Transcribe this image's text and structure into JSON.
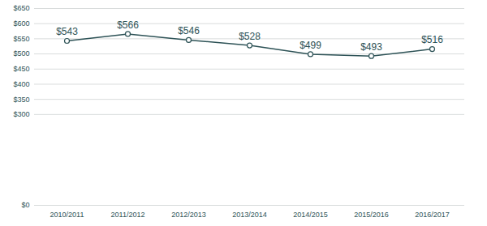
{
  "chart_data": {
    "type": "line",
    "categories": [
      "2010/2011",
      "2011/2012",
      "2012/2013",
      "2013/2014",
      "2014/2015",
      "2015/2016",
      "2016/2017"
    ],
    "values": [
      543,
      566,
      546,
      528,
      499,
      493,
      516
    ],
    "value_labels": [
      "$543",
      "$566",
      "$546",
      "$528",
      "$499",
      "$493",
      "$516"
    ],
    "data_labels": true,
    "color": "#2d5256",
    "marker": "circle",
    "line_style": "solid",
    "ylim": [
      0,
      650
    ],
    "yticks": [
      {
        "value": 0,
        "label": "$0"
      },
      {
        "value": 300,
        "label": "$300"
      },
      {
        "value": 350,
        "label": "$350"
      },
      {
        "value": 400,
        "label": "$400"
      },
      {
        "value": 450,
        "label": "$450"
      },
      {
        "value": 500,
        "label": "$500"
      },
      {
        "value": 550,
        "label": "$550"
      },
      {
        "value": 600,
        "label": "$600"
      },
      {
        "value": 650,
        "label": "$650"
      }
    ],
    "grid": true
  }
}
